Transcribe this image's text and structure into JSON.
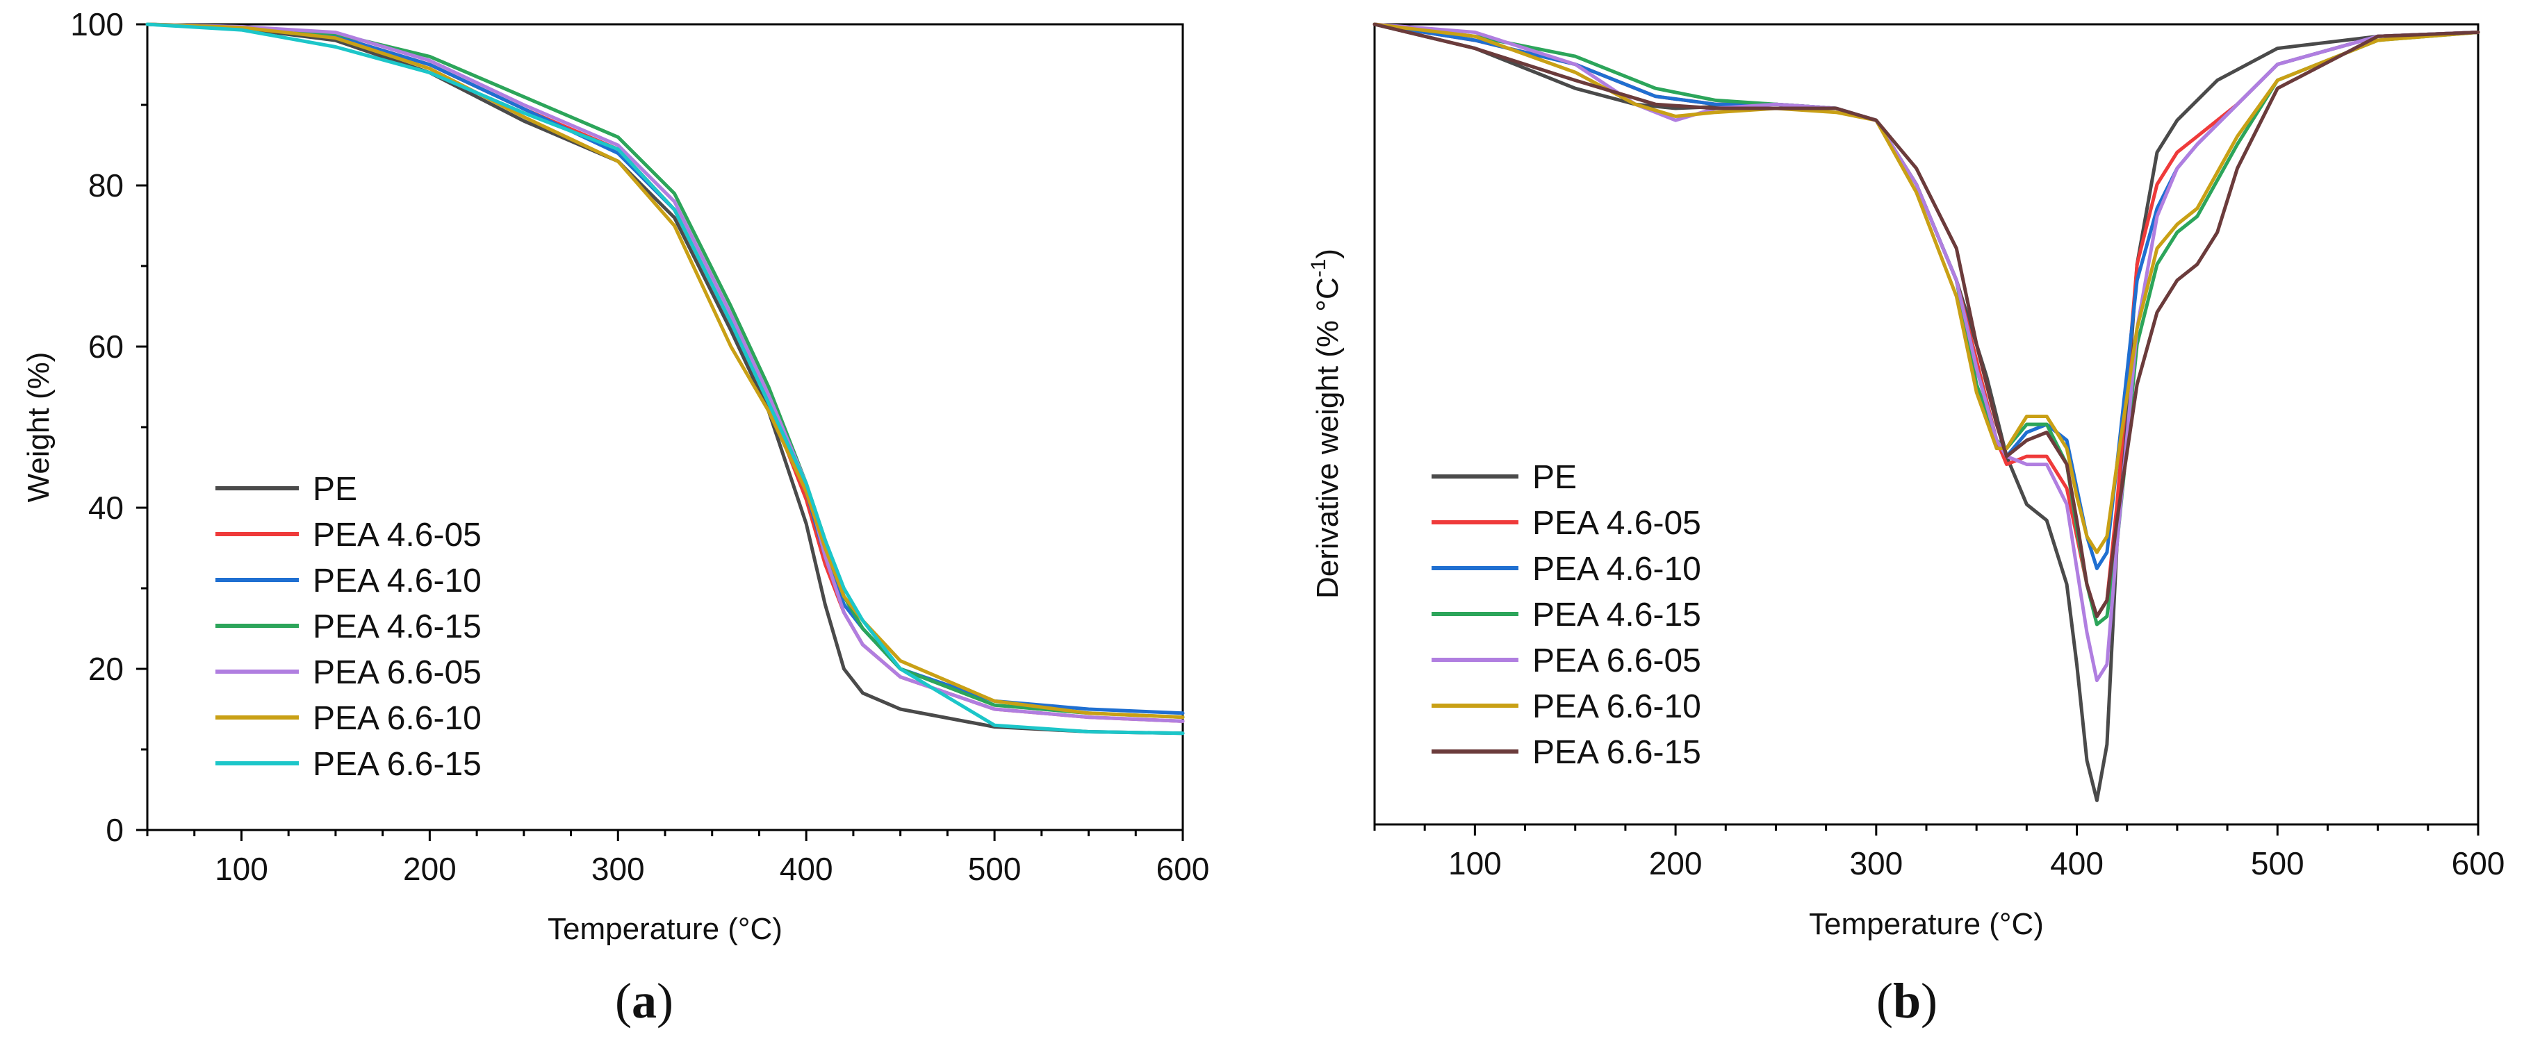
{
  "colors": {
    "PE": "#4a4a4a",
    "PEA 4.6-05": "#ef3a3a",
    "PEA 4.6-10": "#1f6fd1",
    "PEA 4.6-15": "#2ca55a",
    "PEA 6.6-05": "#b07ee0",
    "PEA 6.6-10": "#c9a015",
    "PEA 6.6-15": "#1cc6c9",
    "PEA 6.6-15 (b)": "#6b3b3b"
  },
  "chart_data": [
    {
      "type": "line",
      "panel": "a",
      "panel_label": "a",
      "xlabel": "Temperature (°C)",
      "ylabel": "Weight (%)",
      "xlim": [
        50,
        600
      ],
      "ylim": [
        0,
        100
      ],
      "xticks": [
        100,
        200,
        300,
        400,
        500,
        600
      ],
      "yticks": [
        0,
        20,
        40,
        60,
        80,
        100
      ],
      "legend": "lower-left",
      "series": [
        {
          "name": "PE",
          "x": [
            50,
            100,
            150,
            200,
            250,
            300,
            330,
            360,
            380,
            400,
            410,
            420,
            430,
            450,
            500,
            550,
            600
          ],
          "y": [
            100,
            99.5,
            98,
            94,
            88,
            83,
            76,
            62,
            52,
            38,
            28,
            20,
            17,
            15,
            12.8,
            12.2,
            12
          ]
        },
        {
          "name": "PEA 4.6-05",
          "x": [
            50,
            100,
            150,
            200,
            250,
            300,
            330,
            360,
            380,
            400,
            410,
            420,
            430,
            450,
            500,
            550,
            600
          ],
          "y": [
            100,
            99.6,
            98.5,
            95,
            89.5,
            84.5,
            77,
            63,
            53,
            41,
            33,
            27,
            23,
            19,
            15,
            14,
            13.5
          ]
        },
        {
          "name": "PEA 4.6-10",
          "x": [
            50,
            100,
            150,
            200,
            250,
            300,
            330,
            360,
            380,
            400,
            410,
            420,
            430,
            450,
            500,
            550,
            600
          ],
          "y": [
            100,
            99.6,
            98.5,
            95,
            89.5,
            84,
            77,
            63,
            53,
            42,
            34,
            28,
            25,
            20,
            16,
            15,
            14.5
          ]
        },
        {
          "name": "PEA 4.6-15",
          "x": [
            50,
            100,
            150,
            200,
            250,
            300,
            330,
            360,
            380,
            400,
            410,
            420,
            430,
            450,
            500,
            550,
            600
          ],
          "y": [
            100,
            99.7,
            98.8,
            96,
            91,
            86,
            79,
            65,
            55,
            43,
            36,
            29,
            25,
            20,
            15.5,
            14.5,
            14
          ]
        },
        {
          "name": "PEA 6.6-05",
          "x": [
            50,
            100,
            150,
            200,
            250,
            300,
            330,
            360,
            380,
            400,
            410,
            420,
            430,
            450,
            500,
            550,
            600
          ],
          "y": [
            100,
            99.7,
            99,
            95.5,
            90,
            85,
            78,
            64,
            54,
            43,
            34,
            27,
            23,
            19,
            15,
            14,
            13.5
          ]
        },
        {
          "name": "PEA 6.6-10",
          "x": [
            50,
            100,
            150,
            200,
            250,
            300,
            330,
            360,
            380,
            400,
            410,
            420,
            430,
            450,
            500,
            550,
            600
          ],
          "y": [
            100,
            99.6,
            98.3,
            94.5,
            88.5,
            83,
            75,
            60,
            52,
            42,
            35,
            29,
            26,
            21,
            16,
            14.5,
            14
          ]
        },
        {
          "name": "PEA 6.6-15",
          "x": [
            50,
            100,
            150,
            200,
            250,
            300,
            330,
            360,
            380,
            400,
            410,
            420,
            430,
            450,
            500,
            550,
            600
          ],
          "y": [
            100,
            99.3,
            97.2,
            94,
            89,
            84.5,
            77,
            63,
            53,
            43,
            36,
            30,
            26,
            20,
            13,
            12.2,
            12
          ]
        }
      ]
    },
    {
      "type": "line",
      "panel": "b",
      "panel_label": "b",
      "xlabel": "Temperature (°C)",
      "ylabel": "Derivative weight (% °C",
      "ylabel_sup": "-1",
      "ylabel_end": ")",
      "xlim": [
        50,
        600
      ],
      "ylim": [
        0,
        100
      ],
      "yticks_labeled": false,
      "xticks": [
        100,
        200,
        300,
        400,
        500,
        600
      ],
      "legend": "lower-left",
      "series": [
        {
          "name": "PE",
          "x": [
            50,
            100,
            130,
            150,
            180,
            200,
            250,
            280,
            300,
            320,
            340,
            355,
            365,
            375,
            385,
            395,
            400,
            405,
            410,
            415,
            420,
            430,
            440,
            450,
            470,
            500,
            550,
            600
          ],
          "y": [
            100,
            97,
            94,
            92,
            90,
            89.5,
            90,
            89.5,
            88,
            80,
            68,
            56,
            46,
            40,
            38,
            30,
            20,
            8,
            3,
            10,
            35,
            70,
            84,
            88,
            93,
            97,
            98.5,
            99
          ]
        },
        {
          "name": "PEA 4.6-05",
          "x": [
            50,
            100,
            150,
            190,
            220,
            250,
            280,
            300,
            320,
            340,
            350,
            360,
            365,
            375,
            385,
            395,
            400,
            405,
            410,
            415,
            420,
            430,
            440,
            450,
            460,
            480,
            500,
            550,
            600
          ],
          "y": [
            100,
            98,
            95,
            91,
            90,
            90,
            89.5,
            88,
            80,
            68,
            58,
            48,
            45,
            46,
            46,
            42,
            36,
            30,
            26,
            28,
            40,
            70,
            80,
            84,
            86,
            90,
            95,
            98.5,
            99
          ]
        },
        {
          "name": "PEA 4.6-10",
          "x": [
            50,
            100,
            150,
            190,
            220,
            250,
            280,
            300,
            320,
            340,
            350,
            360,
            365,
            375,
            385,
            395,
            400,
            405,
            410,
            415,
            420,
            430,
            440,
            450,
            460,
            480,
            500,
            550,
            600
          ],
          "y": [
            100,
            98,
            95,
            91,
            90,
            90,
            89.5,
            88,
            80,
            68,
            57,
            48,
            46,
            49,
            50,
            48,
            42,
            36,
            32,
            34,
            45,
            68,
            77,
            82,
            85,
            90,
            95,
            98.5,
            99
          ]
        },
        {
          "name": "PEA 4.6-15",
          "x": [
            50,
            100,
            150,
            190,
            220,
            250,
            280,
            300,
            320,
            340,
            350,
            360,
            365,
            375,
            385,
            395,
            400,
            405,
            410,
            415,
            420,
            430,
            440,
            450,
            460,
            480,
            500,
            550,
            600
          ],
          "y": [
            100,
            98.5,
            96,
            92,
            90.5,
            90,
            89.5,
            88,
            80,
            68,
            55,
            48,
            47,
            50,
            50,
            45,
            37,
            30,
            25,
            26,
            35,
            60,
            70,
            74,
            76,
            85,
            93,
            98,
            99
          ]
        },
        {
          "name": "PEA 6.6-05",
          "x": [
            50,
            100,
            150,
            180,
            200,
            220,
            250,
            280,
            300,
            320,
            340,
            350,
            360,
            365,
            375,
            385,
            395,
            400,
            405,
            410,
            415,
            420,
            430,
            440,
            450,
            460,
            480,
            500,
            550,
            600
          ],
          "y": [
            100,
            99,
            95,
            90,
            88,
            89.5,
            90,
            89.5,
            88,
            80,
            68,
            57,
            48,
            46,
            45,
            45,
            40,
            32,
            24,
            18,
            20,
            35,
            62,
            76,
            82,
            85,
            90,
            95,
            98.5,
            99
          ]
        },
        {
          "name": "PEA 6.6-10",
          "x": [
            50,
            100,
            150,
            180,
            200,
            220,
            250,
            280,
            300,
            320,
            340,
            350,
            360,
            365,
            375,
            385,
            395,
            400,
            405,
            410,
            415,
            420,
            430,
            440,
            450,
            460,
            480,
            500,
            550,
            600
          ],
          "y": [
            100,
            98.5,
            94,
            90,
            88.5,
            89,
            89.5,
            89,
            88,
            79,
            66,
            54,
            47,
            47,
            51,
            51,
            47,
            41,
            36,
            34,
            36,
            45,
            62,
            72,
            75,
            77,
            86,
            93,
            98,
            99
          ]
        },
        {
          "name": "PEA 6.6-15",
          "x": [
            50,
            100,
            150,
            190,
            220,
            250,
            280,
            300,
            320,
            340,
            350,
            360,
            365,
            375,
            385,
            395,
            400,
            405,
            410,
            415,
            420,
            430,
            440,
            450,
            460,
            470,
            480,
            500,
            550,
            600
          ],
          "y": [
            100,
            97,
            93,
            90,
            89.5,
            89.5,
            89.5,
            88,
            82,
            72,
            60,
            50,
            46,
            48,
            49,
            45,
            38,
            30,
            26,
            28,
            38,
            55,
            64,
            68,
            70,
            74,
            82,
            92,
            98.5,
            99
          ]
        }
      ]
    }
  ]
}
